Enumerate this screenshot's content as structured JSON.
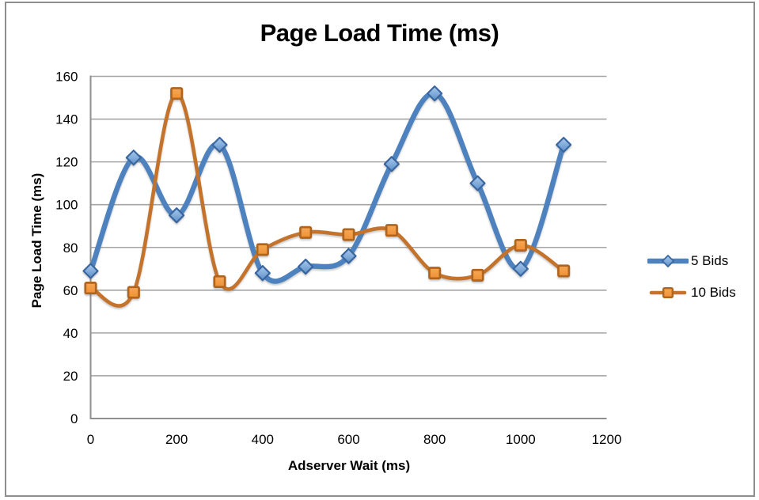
{
  "chart_data": {
    "type": "line",
    "title": "Page Load Time (ms)",
    "xlabel": "Adserver Wait (ms)",
    "ylabel": "Page Load Time (ms)",
    "x": [
      0,
      100,
      200,
      300,
      400,
      500,
      600,
      700,
      800,
      900,
      1000,
      1100
    ],
    "series": [
      {
        "name": "5 Bids",
        "values": [
          69,
          122,
          95,
          128,
          68,
          71,
          76,
          119,
          152,
          110,
          70,
          128
        ],
        "line_color": "#4d82be",
        "marker": "diamond",
        "marker_fill_light": "#a9c9ec",
        "marker_fill_dark": "#5d90ca",
        "marker_stroke": "#3a669f"
      },
      {
        "name": "10 Bids",
        "values": [
          61,
          59,
          152,
          64,
          79,
          87,
          86,
          88,
          68,
          67,
          81,
          69
        ],
        "line_color": "#c4732c",
        "marker": "square",
        "marker_fill_light": "#f8a855",
        "marker_fill_dark": "#ee9136",
        "marker_stroke": "#b0651e"
      }
    ],
    "x_ticks": [
      0,
      200,
      400,
      600,
      800,
      1000,
      1200
    ],
    "y_ticks": [
      0,
      20,
      40,
      60,
      80,
      100,
      120,
      140,
      160
    ],
    "xlim": [
      0,
      1200
    ],
    "ylim": [
      0,
      160
    ],
    "smooth": true,
    "grid": "horizontal",
    "legend_position": "right",
    "colors": {
      "gridline": "#a4a4a4",
      "axis": "#8f8f8f",
      "frame_border": "#8e8e8e",
      "text": "#000000",
      "background": "#ffffff"
    }
  }
}
